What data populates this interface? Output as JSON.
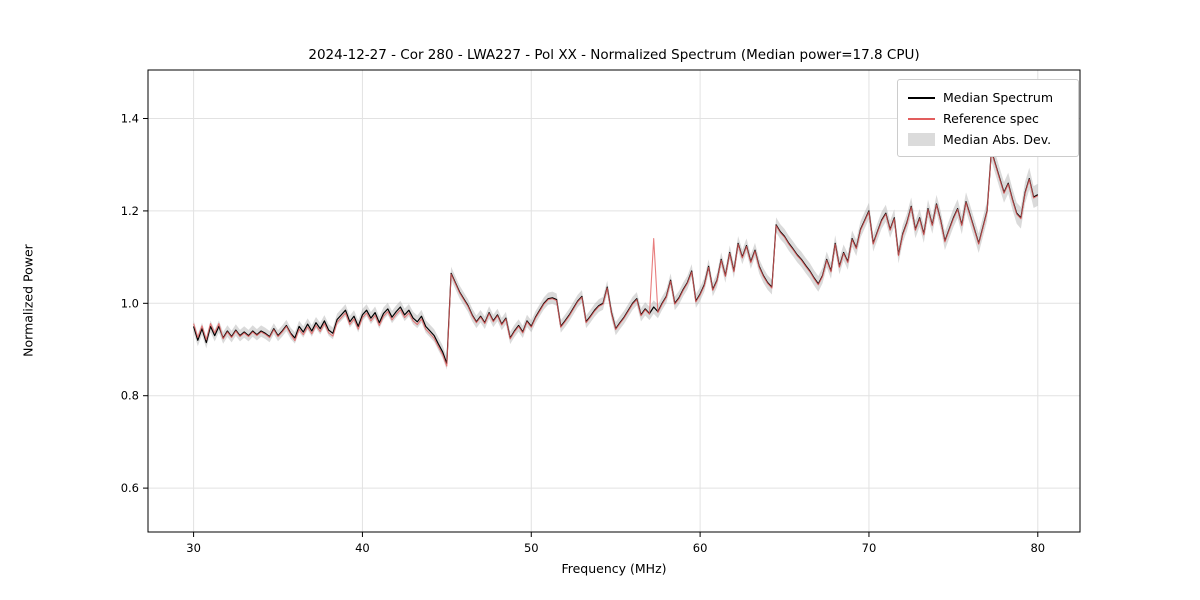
{
  "figure": {
    "title": "2024-12-27 - Cor 280 - LWA227 - Pol XX - Normalized Spectrum (Median power=17.8 CPU)",
    "xlabel": "Frequency (MHz)",
    "ylabel": "Normalized Power"
  },
  "legend": {
    "items": [
      {
        "label": "Median Spectrum",
        "type": "line",
        "color": "#000000"
      },
      {
        "label": "Reference spec",
        "type": "line",
        "color": "#e25d5d"
      },
      {
        "label": "Median Abs. Dev.",
        "type": "patch",
        "color": "#bdbdbd"
      }
    ]
  },
  "chart_data": {
    "type": "line",
    "title": "2024-12-27 - Cor 280 - LWA227 - Pol XX - Normalized Spectrum (Median power=17.8 CPU)",
    "xlabel": "Frequency (MHz)",
    "ylabel": "Normalized Power",
    "xlim": [
      27.3,
      82.5
    ],
    "ylim": [
      0.505,
      1.505
    ],
    "xticks": [
      30,
      40,
      50,
      60,
      70,
      80
    ],
    "yticks": [
      0.6,
      0.8,
      1.0,
      1.2,
      1.4
    ],
    "grid": true,
    "legend_position": "upper right",
    "x_start": 30.0,
    "x_step": 0.25,
    "series": [
      {
        "name": "Median Spectrum",
        "color": "#000000",
        "values": [
          0.95,
          0.92,
          0.945,
          0.915,
          0.95,
          0.93,
          0.95,
          0.925,
          0.94,
          0.928,
          0.942,
          0.93,
          0.938,
          0.93,
          0.94,
          0.932,
          0.94,
          0.935,
          0.928,
          0.945,
          0.93,
          0.94,
          0.952,
          0.935,
          0.925,
          0.95,
          0.938,
          0.955,
          0.94,
          0.958,
          0.945,
          0.962,
          0.942,
          0.935,
          0.965,
          0.975,
          0.985,
          0.96,
          0.972,
          0.95,
          0.975,
          0.985,
          0.968,
          0.98,
          0.958,
          0.978,
          0.988,
          0.97,
          0.982,
          0.992,
          0.975,
          0.985,
          0.968,
          0.96,
          0.972,
          0.95,
          0.94,
          0.93,
          0.912,
          0.895,
          0.87,
          1.065,
          1.045,
          1.025,
          1.01,
          0.995,
          0.975,
          0.96,
          0.972,
          0.958,
          0.98,
          0.962,
          0.975,
          0.955,
          0.968,
          0.925,
          0.94,
          0.952,
          0.938,
          0.962,
          0.95,
          0.97,
          0.985,
          1.0,
          1.01,
          1.012,
          1.008,
          0.95,
          0.962,
          0.975,
          0.99,
          1.005,
          1.015,
          0.96,
          0.972,
          0.985,
          0.995,
          1.0,
          1.035,
          0.98,
          0.945,
          0.958,
          0.97,
          0.985,
          1.0,
          1.01,
          0.975,
          0.988,
          0.978,
          0.992,
          0.982,
          1.0,
          1.015,
          1.05,
          1.0,
          1.012,
          1.03,
          1.045,
          1.07,
          1.005,
          1.02,
          1.04,
          1.08,
          1.03,
          1.05,
          1.095,
          1.06,
          1.11,
          1.07,
          1.13,
          1.1,
          1.125,
          1.09,
          1.115,
          1.08,
          1.06,
          1.045,
          1.035,
          1.17,
          1.155,
          1.145,
          1.13,
          1.118,
          1.105,
          1.095,
          1.082,
          1.07,
          1.055,
          1.042,
          1.06,
          1.095,
          1.07,
          1.13,
          1.08,
          1.11,
          1.09,
          1.14,
          1.12,
          1.16,
          1.18,
          1.2,
          1.13,
          1.155,
          1.18,
          1.195,
          1.16,
          1.185,
          1.105,
          1.15,
          1.175,
          1.21,
          1.16,
          1.185,
          1.15,
          1.205,
          1.17,
          1.215,
          1.18,
          1.135,
          1.16,
          1.185,
          1.205,
          1.17,
          1.22,
          1.19,
          1.16,
          1.13,
          1.165,
          1.2,
          1.33,
          1.3,
          1.27,
          1.24,
          1.26,
          1.225,
          1.195,
          1.185,
          1.24,
          1.27,
          1.23,
          1.235
        ]
      },
      {
        "name": "Reference spec",
        "color": "#e25d5d",
        "values": [
          0.956,
          0.926,
          0.951,
          0.921,
          0.956,
          0.936,
          0.956,
          0.923,
          0.938,
          0.926,
          0.94,
          0.928,
          0.936,
          0.928,
          0.938,
          0.93,
          0.938,
          0.933,
          0.926,
          0.943,
          0.928,
          0.938,
          0.95,
          0.933,
          0.919,
          0.944,
          0.932,
          0.949,
          0.934,
          0.952,
          0.939,
          0.956,
          0.936,
          0.929,
          0.959,
          0.969,
          0.979,
          0.954,
          0.966,
          0.944,
          0.969,
          0.979,
          0.962,
          0.974,
          0.952,
          0.972,
          0.982,
          0.964,
          0.976,
          0.986,
          0.969,
          0.979,
          0.962,
          0.954,
          0.966,
          0.944,
          0.934,
          0.924,
          0.906,
          0.889,
          0.864,
          1.063,
          1.043,
          1.023,
          1.008,
          0.993,
          0.973,
          0.958,
          0.97,
          0.956,
          0.978,
          0.96,
          0.973,
          0.953,
          0.966,
          0.923,
          0.938,
          0.95,
          0.936,
          0.96,
          0.948,
          0.968,
          0.983,
          0.998,
          1.008,
          1.01,
          1.006,
          0.948,
          0.96,
          0.973,
          0.988,
          1.003,
          1.013,
          0.958,
          0.97,
          0.983,
          0.993,
          0.998,
          1.033,
          0.978,
          0.943,
          0.956,
          0.968,
          0.983,
          0.998,
          1.008,
          0.973,
          0.986,
          0.976,
          1.14,
          0.98,
          0.998,
          1.013,
          1.048,
          0.998,
          1.01,
          1.028,
          1.043,
          1.068,
          1.003,
          1.018,
          1.038,
          1.078,
          1.028,
          1.048,
          1.093,
          1.058,
          1.108,
          1.068,
          1.128,
          1.098,
          1.123,
          1.088,
          1.113,
          1.078,
          1.058,
          1.043,
          1.033,
          1.168,
          1.153,
          1.143,
          1.128,
          1.116,
          1.103,
          1.093,
          1.08,
          1.068,
          1.053,
          1.04,
          1.058,
          1.093,
          1.068,
          1.128,
          1.078,
          1.108,
          1.088,
          1.138,
          1.118,
          1.158,
          1.178,
          1.198,
          1.128,
          1.153,
          1.178,
          1.193,
          1.158,
          1.183,
          1.103,
          1.148,
          1.173,
          1.208,
          1.158,
          1.183,
          1.148,
          1.203,
          1.168,
          1.213,
          1.178,
          1.133,
          1.158,
          1.183,
          1.203,
          1.168,
          1.218,
          1.188,
          1.158,
          1.128,
          1.163,
          1.198,
          1.328,
          1.298,
          1.268,
          1.238,
          1.258,
          1.223,
          1.193,
          1.183,
          1.238,
          1.268,
          1.228,
          1.233
        ]
      }
    ],
    "band": {
      "name": "Median Abs. Dev.",
      "color": "#bdbdbd",
      "around": "Median Spectrum",
      "mad_x": [
        30,
        35,
        40,
        45,
        50,
        55,
        60,
        65,
        70,
        75,
        80
      ],
      "mad": [
        0.013,
        0.012,
        0.013,
        0.014,
        0.013,
        0.014,
        0.015,
        0.016,
        0.018,
        0.02,
        0.024
      ]
    }
  }
}
